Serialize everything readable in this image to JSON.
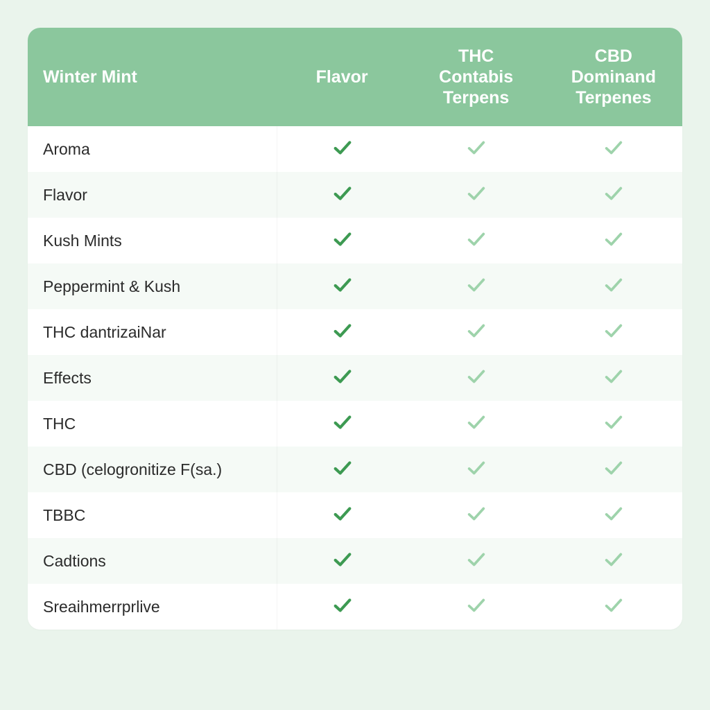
{
  "colors": {
    "page_bg": "#eaf4ec",
    "header_bg": "#8bc79d",
    "header_text": "#ffffff",
    "row_bg_a": "#ffffff",
    "row_bg_b": "#f5faf6",
    "row_text": "#2b2b2b",
    "check_dark": "#3d9a52",
    "check_light": "#9ed3ab",
    "cell_divider": "rgba(0,0,0,0.04)"
  },
  "typography": {
    "header_fontsize": 25,
    "header_fontweight": 600,
    "body_fontsize": 23
  },
  "table": {
    "border_radius": 18,
    "columns": [
      {
        "label": "Winter Mint",
        "width_pct": 38,
        "align": "left"
      },
      {
        "label": "Flavor",
        "width_pct": 20,
        "align": "center"
      },
      {
        "label": "THC Contabis Terpens",
        "width_pct": 21,
        "align": "center"
      },
      {
        "label": "CBD Dominand Terpenes",
        "width_pct": 21,
        "align": "center"
      }
    ],
    "rows": [
      {
        "label": "Aroma",
        "cells": [
          "dark",
          "light",
          "light"
        ]
      },
      {
        "label": "Flavor",
        "cells": [
          "dark",
          "light",
          "light"
        ]
      },
      {
        "label": "Kush Mints",
        "cells": [
          "dark",
          "light",
          "light"
        ]
      },
      {
        "label": "Peppermint & Kush",
        "cells": [
          "dark",
          "light",
          "light"
        ]
      },
      {
        "label": "THC dantrizaiNar",
        "cells": [
          "dark",
          "light",
          "light"
        ]
      },
      {
        "label": "Effects",
        "cells": [
          "dark",
          "light",
          "light"
        ]
      },
      {
        "label": "THC",
        "cells": [
          "dark",
          "light",
          "light"
        ]
      },
      {
        "label": "CBD (celogronitize F(sa.)",
        "cells": [
          "dark",
          "light",
          "light"
        ]
      },
      {
        "label": "TBBC",
        "cells": [
          "dark",
          "light",
          "light"
        ]
      },
      {
        "label": "Cadtions",
        "cells": [
          "dark",
          "light",
          "light"
        ]
      },
      {
        "label": "Sreaihmerrprlive",
        "cells": [
          "dark",
          "light",
          "light"
        ]
      }
    ]
  }
}
